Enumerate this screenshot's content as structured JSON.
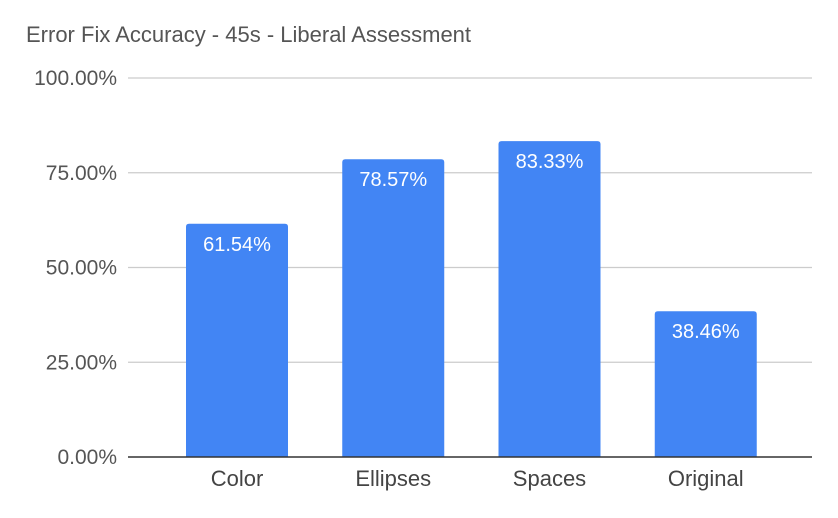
{
  "chart_data": {
    "type": "bar",
    "title": "Error Fix Accuracy - 45s - Liberal Assessment",
    "categories": [
      "Color",
      "Ellipses",
      "Spaces",
      "Original"
    ],
    "values": [
      61.54,
      78.57,
      83.33,
      38.46
    ],
    "data_labels": [
      "61.54%",
      "78.57%",
      "83.33%",
      "38.46%"
    ],
    "ylim": [
      0,
      100
    ],
    "yticks": [
      0,
      25,
      50,
      75,
      100
    ],
    "ytick_labels": [
      "0.00%",
      "25.00%",
      "50.00%",
      "75.00%",
      "100.00%"
    ],
    "xlabel": "",
    "ylabel": "",
    "grid": true,
    "bar_color": "#4285f4",
    "grid_color": "#cccccc",
    "axis_color": "#333333"
  }
}
